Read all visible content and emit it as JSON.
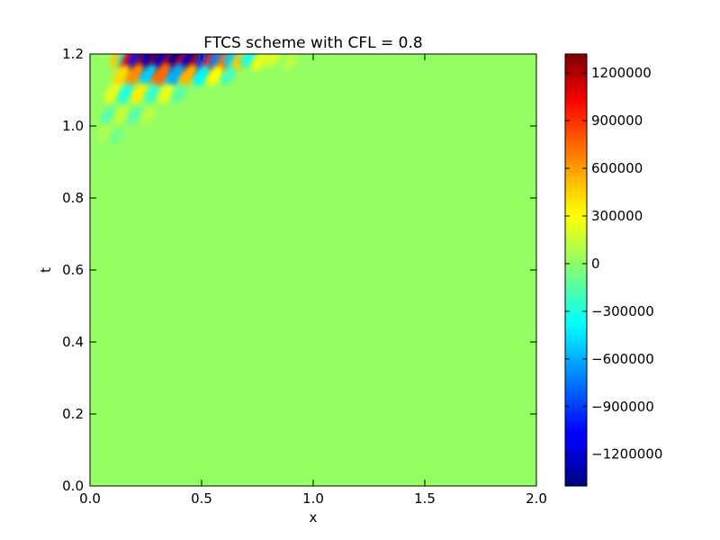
{
  "chart_data": {
    "type": "heatmap",
    "title": "FTCS scheme with CFL = 0.8",
    "xlabel": "x",
    "ylabel": "t",
    "xlim": [
      0.0,
      2.0
    ],
    "ylim": [
      0.0,
      1.2
    ],
    "x_ticks": [
      "0.0",
      "0.5",
      "1.0",
      "1.5",
      "2.0"
    ],
    "x_tick_values": [
      0.0,
      0.5,
      1.0,
      1.5,
      2.0
    ],
    "y_ticks": [
      "0.0",
      "0.2",
      "0.4",
      "0.6",
      "0.8",
      "1.0",
      "1.2"
    ],
    "y_tick_values": [
      0.0,
      0.2,
      0.4,
      0.6,
      0.8,
      1.0,
      1.2
    ],
    "colormap": "jet",
    "background_value": 0,
    "colorbar": {
      "vmin": -1400000,
      "vmax": 1320000,
      "ticks": [
        "1200000",
        "900000",
        "600000",
        "300000",
        "0",
        "−300000",
        "−600000",
        "−900000",
        "−1200000"
      ],
      "tick_values": [
        1200000,
        900000,
        600000,
        300000,
        0,
        -300000,
        -600000,
        -900000,
        -1200000
      ]
    },
    "features": [
      {
        "x": 0.13,
        "t": 1.19,
        "value": 450000
      },
      {
        "x": 0.16,
        "t": 1.19,
        "value": -300000
      },
      {
        "x": 0.19,
        "t": 1.19,
        "value": 1000000
      },
      {
        "x": 0.22,
        "t": 1.19,
        "value": -1000000
      },
      {
        "x": 0.25,
        "t": 1.18,
        "value": 1200000
      },
      {
        "x": 0.28,
        "t": 1.19,
        "value": -1200000
      },
      {
        "x": 0.31,
        "t": 1.18,
        "value": 1300000
      },
      {
        "x": 0.34,
        "t": 1.19,
        "value": -1200000
      },
      {
        "x": 0.37,
        "t": 1.18,
        "value": 1100000
      },
      {
        "x": 0.4,
        "t": 1.19,
        "value": -1350000
      },
      {
        "x": 0.43,
        "t": 1.18,
        "value": 1000000
      },
      {
        "x": 0.46,
        "t": 1.19,
        "value": -1200000
      },
      {
        "x": 0.49,
        "t": 1.18,
        "value": 1200000
      },
      {
        "x": 0.52,
        "t": 1.19,
        "value": -900000
      },
      {
        "x": 0.55,
        "t": 1.18,
        "value": 900000
      },
      {
        "x": 0.58,
        "t": 1.19,
        "value": -700000
      },
      {
        "x": 0.61,
        "t": 1.18,
        "value": 700000
      },
      {
        "x": 0.64,
        "t": 1.19,
        "value": -500000
      },
      {
        "x": 0.67,
        "t": 1.18,
        "value": 450000
      },
      {
        "x": 0.71,
        "t": 1.19,
        "value": -300000
      },
      {
        "x": 0.76,
        "t": 1.18,
        "value": 250000
      },
      {
        "x": 0.82,
        "t": 1.19,
        "value": 200000
      },
      {
        "x": 0.9,
        "t": 1.18,
        "value": 120000
      },
      {
        "x": 0.14,
        "t": 1.14,
        "value": 400000
      },
      {
        "x": 0.2,
        "t": 1.14,
        "value": 600000
      },
      {
        "x": 0.26,
        "t": 1.14,
        "value": -500000
      },
      {
        "x": 0.32,
        "t": 1.14,
        "value": 700000
      },
      {
        "x": 0.38,
        "t": 1.14,
        "value": -600000
      },
      {
        "x": 0.44,
        "t": 1.14,
        "value": 500000
      },
      {
        "x": 0.5,
        "t": 1.14,
        "value": -400000
      },
      {
        "x": 0.56,
        "t": 1.14,
        "value": 300000
      },
      {
        "x": 0.62,
        "t": 1.14,
        "value": -200000
      },
      {
        "x": 0.1,
        "t": 1.09,
        "value": 250000
      },
      {
        "x": 0.16,
        "t": 1.09,
        "value": -300000
      },
      {
        "x": 0.22,
        "t": 1.09,
        "value": 350000
      },
      {
        "x": 0.28,
        "t": 1.09,
        "value": -250000
      },
      {
        "x": 0.34,
        "t": 1.09,
        "value": 250000
      },
      {
        "x": 0.4,
        "t": 1.09,
        "value": -150000
      },
      {
        "x": 0.08,
        "t": 1.03,
        "value": -150000
      },
      {
        "x": 0.14,
        "t": 1.03,
        "value": 150000
      },
      {
        "x": 0.2,
        "t": 1.03,
        "value": -150000
      },
      {
        "x": 0.26,
        "t": 1.03,
        "value": 120000
      },
      {
        "x": 0.06,
        "t": 0.98,
        "value": 80000
      },
      {
        "x": 0.12,
        "t": 0.97,
        "value": -70000
      }
    ]
  }
}
